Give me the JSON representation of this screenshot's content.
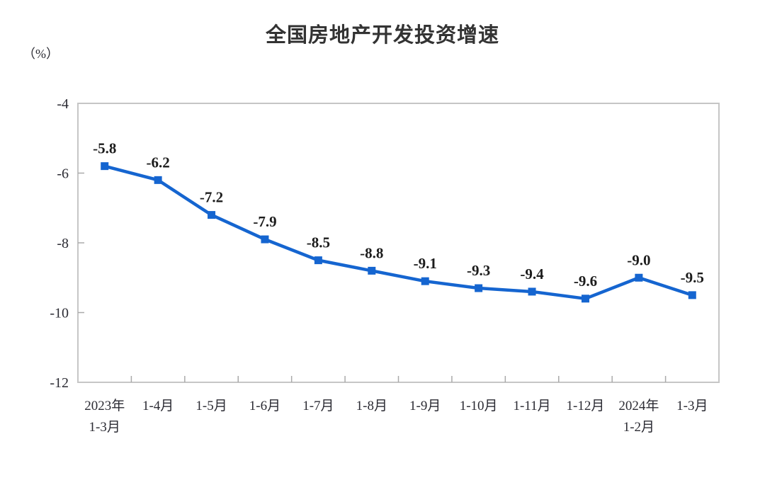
{
  "chart": {
    "title": "全国房地产开发投资增速",
    "unit_label": "（%）"
  },
  "chart_data": {
    "type": "line",
    "title": "全国房地产开发投资增速",
    "ylabel": "（%）",
    "xlabel": "",
    "categories": [
      "2023年\n1-3月",
      "1-4月",
      "1-5月",
      "1-6月",
      "1-7月",
      "1-8月",
      "1-9月",
      "1-10月",
      "1-11月",
      "1-12月",
      "2024年\n1-2月",
      "1-3月"
    ],
    "values": [
      -5.8,
      -6.2,
      -7.2,
      -7.9,
      -8.5,
      -8.8,
      -9.1,
      -9.3,
      -9.4,
      -9.6,
      -9.0,
      -9.5
    ],
    "data_labels": [
      "-5.8",
      "-6.2",
      "-7.2",
      "-7.9",
      "-8.5",
      "-8.8",
      "-9.1",
      "-9.3",
      "-9.4",
      "-9.6",
      "-9.0",
      "-9.5"
    ],
    "ylim": [
      -12,
      -4
    ],
    "yticks": [
      -4,
      -6,
      -8,
      -10,
      -12
    ],
    "grid": false,
    "legend": false,
    "marker": "square",
    "colors": {
      "line": "#1565d0",
      "marker": "#1565d0",
      "plot_border": "#c6c6c6",
      "tick": "#aaaaaa",
      "axis_text": "#2b2b33",
      "data_label": "#1c1c1c",
      "title": "#333333",
      "background": "#ffffff"
    }
  }
}
